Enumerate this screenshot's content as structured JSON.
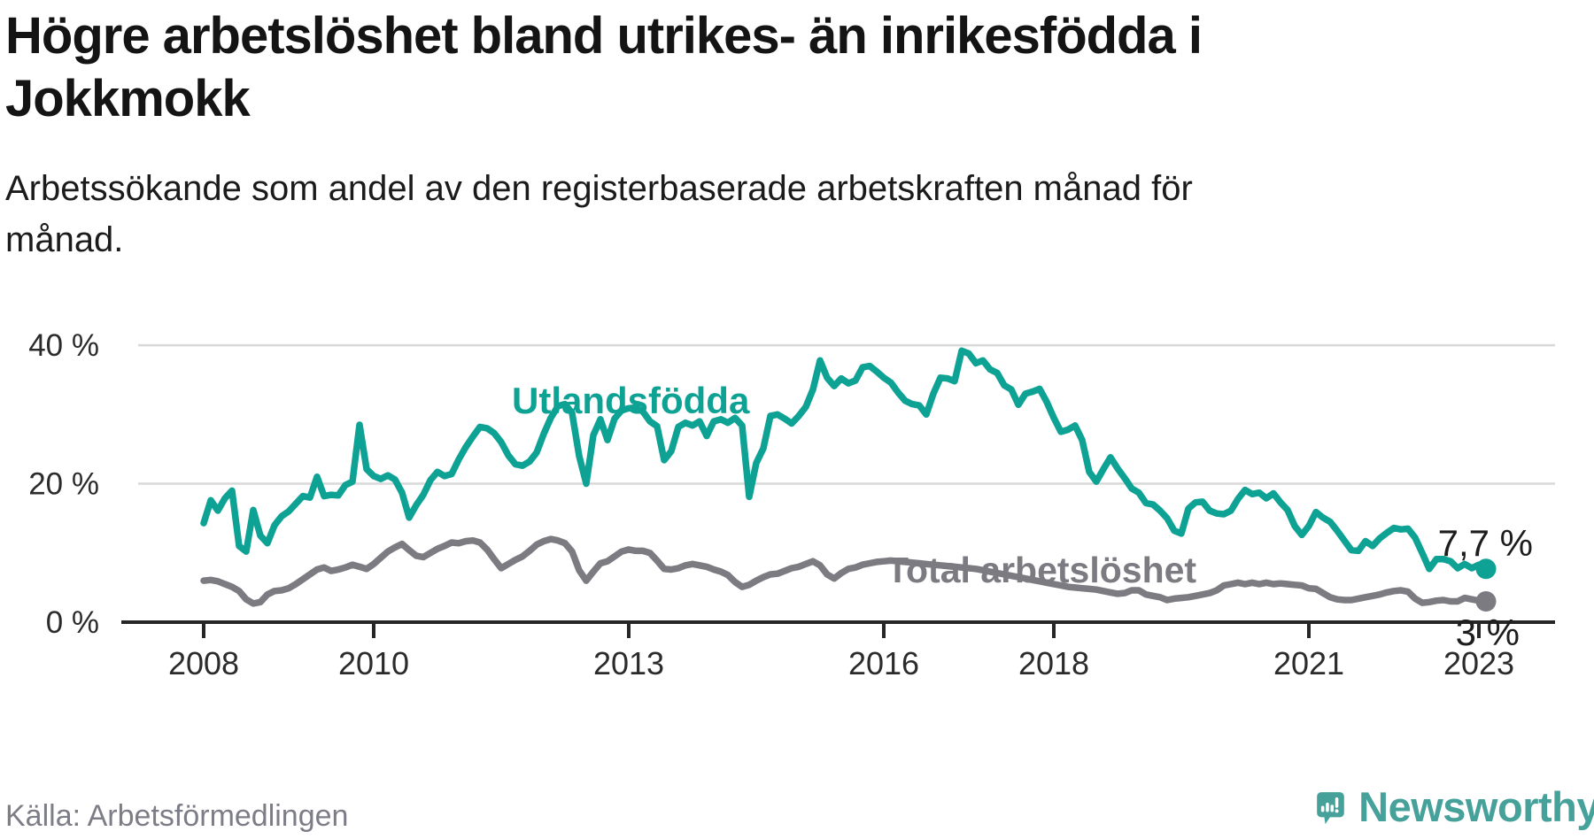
{
  "header": {
    "title_lines": [
      "Högre arbetslöshet bland utrikes- än inrikesfödda i",
      "Jokkmokk"
    ],
    "subtitle_lines": [
      "Arbetssökande som andel av den registerbaserade arbetskraften månad för",
      "månad."
    ]
  },
  "footer": {
    "source": "Källa: Arbetsförmedlingen",
    "brand": "Newsworthy"
  },
  "colors": {
    "foreign_born_line": "#0ea295",
    "total_line": "#7b7b81",
    "annotation_text": "#1d1d1d",
    "axis": "#262626",
    "gridline": "#d9d9d9",
    "tick_label": "#2b2b2b",
    "brand_teal": "#46a19a"
  },
  "chart_data": {
    "type": "line",
    "title": "Högre arbetslöshet bland utrikes- än inrikesfödda i Jokkmokk",
    "subtitle": "Arbetssökande som andel av den registerbaserade arbetskraften månad för månad.",
    "x_unit": "monthly",
    "x_start": "2008-01",
    "x_end": "2023-02",
    "x_tick_years": [
      2008,
      2010,
      2013,
      2016,
      2018,
      2021,
      2023
    ],
    "y_ticks": [
      {
        "value": 0,
        "label": "0 %"
      },
      {
        "value": 20,
        "label": "20 %"
      },
      {
        "value": 40,
        "label": "40 %"
      }
    ],
    "ylim": [
      0,
      42
    ],
    "grid": "horizontal",
    "legend_position": "inline-labels",
    "series": [
      {
        "name": "Utlandsfödda",
        "color": "#0ea295",
        "end_label": "7,7 %",
        "values": [
          14.3,
          17.6,
          16.1,
          17.9,
          19.0,
          11.0,
          10.2,
          16.2,
          12.5,
          11.4,
          14.0,
          15.3,
          16.0,
          17.1,
          18.2,
          18.0,
          21.0,
          18.2,
          18.4,
          18.3,
          19.8,
          20.3,
          28.5,
          22.1,
          21.1,
          20.7,
          21.2,
          20.6,
          18.7,
          15.1,
          16.9,
          18.4,
          20.5,
          21.7,
          21.1,
          21.4,
          23.5,
          25.3,
          26.8,
          28.2,
          28.0,
          27.3,
          26.0,
          24.1,
          22.8,
          22.6,
          23.2,
          24.5,
          27.2,
          29.5,
          31.2,
          31.5,
          30.2,
          24.0,
          20.0,
          27.0,
          29.3,
          26.3,
          29.4,
          30.6,
          30.9,
          31.0,
          30.4,
          29.0,
          28.3,
          23.4,
          24.7,
          28.2,
          28.8,
          28.4,
          29.0,
          26.9,
          29.0,
          29.3,
          28.8,
          29.5,
          28.4,
          18.1,
          23.0,
          25.1,
          29.8,
          30.0,
          29.4,
          28.7,
          29.8,
          31.1,
          33.6,
          37.8,
          35.3,
          34.1,
          35.2,
          34.5,
          34.9,
          36.8,
          37.0,
          36.2,
          35.3,
          34.6,
          33.2,
          32.0,
          31.5,
          31.3,
          30.0,
          33.0,
          35.3,
          35.2,
          34.8,
          39.2,
          38.8,
          37.4,
          37.8,
          36.5,
          36.0,
          34.2,
          33.6,
          31.4,
          33.0,
          33.3,
          33.7,
          31.8,
          29.5,
          27.5,
          27.8,
          28.4,
          26.3,
          21.7,
          20.3,
          22.1,
          23.8,
          22.2,
          20.8,
          19.3,
          18.7,
          17.2,
          17.0,
          16.1,
          15.0,
          13.2,
          12.8,
          16.4,
          17.3,
          17.4,
          16.1,
          15.7,
          15.6,
          16.1,
          17.8,
          19.1,
          18.5,
          18.7,
          17.9,
          18.6,
          17.3,
          16.2,
          13.9,
          12.6,
          13.9,
          15.9,
          15.1,
          14.5,
          13.2,
          11.8,
          10.4,
          10.3,
          11.7,
          11.0,
          12.1,
          12.9,
          13.6,
          13.4,
          13.5,
          12.2,
          10.0,
          7.7,
          9.1,
          9.1,
          8.8,
          7.8,
          8.4,
          7.8,
          8.3,
          7.7
        ]
      },
      {
        "name": "Total arbetslöshet",
        "color": "#7b7b81",
        "end_label": "3 %",
        "values": [
          6.0,
          6.1,
          5.9,
          5.5,
          5.1,
          4.5,
          3.3,
          2.7,
          2.9,
          4.0,
          4.5,
          4.6,
          4.9,
          5.5,
          6.2,
          6.9,
          7.6,
          7.9,
          7.4,
          7.6,
          7.9,
          8.3,
          8.0,
          7.7,
          8.4,
          9.3,
          10.2,
          10.8,
          11.3,
          10.4,
          9.6,
          9.4,
          10.0,
          10.6,
          11.0,
          11.5,
          11.4,
          11.7,
          11.8,
          11.5,
          10.5,
          9.1,
          7.8,
          8.4,
          9.0,
          9.5,
          10.3,
          11.2,
          11.7,
          12.0,
          11.8,
          11.4,
          10.2,
          7.5,
          6.0,
          7.3,
          8.5,
          8.8,
          9.5,
          10.2,
          10.5,
          10.3,
          10.3,
          10.0,
          8.9,
          7.7,
          7.6,
          7.8,
          8.2,
          8.4,
          8.2,
          8.0,
          7.6,
          7.3,
          6.8,
          5.8,
          5.1,
          5.4,
          6.0,
          6.5,
          6.9,
          7.0,
          7.4,
          7.8,
          8.0,
          8.4,
          8.8,
          8.2,
          6.9,
          6.3,
          7.1,
          7.7,
          7.9,
          8.3,
          8.5,
          8.7,
          8.8,
          8.9,
          8.8,
          8.7,
          8.6,
          8.5,
          8.4,
          8.3,
          8.2,
          8.1,
          8.0,
          7.9,
          7.8,
          7.7,
          7.5,
          7.3,
          7.1,
          6.9,
          6.7,
          6.5,
          6.3,
          6.1,
          5.9,
          5.7,
          5.5,
          5.3,
          5.1,
          5.0,
          4.9,
          4.8,
          4.7,
          4.5,
          4.3,
          4.1,
          4.2,
          4.6,
          4.6,
          4.0,
          3.8,
          3.6,
          3.2,
          3.4,
          3.5,
          3.6,
          3.8,
          4.0,
          4.2,
          4.6,
          5.3,
          5.5,
          5.7,
          5.5,
          5.7,
          5.5,
          5.7,
          5.5,
          5.6,
          5.5,
          5.4,
          5.3,
          4.9,
          4.8,
          4.2,
          3.6,
          3.3,
          3.2,
          3.2,
          3.4,
          3.6,
          3.8,
          4.0,
          4.3,
          4.5,
          4.6,
          4.4,
          3.4,
          2.8,
          2.9,
          3.1,
          3.2,
          3.0,
          3.0,
          3.5,
          3.3,
          3.1,
          3.0
        ]
      }
    ]
  }
}
